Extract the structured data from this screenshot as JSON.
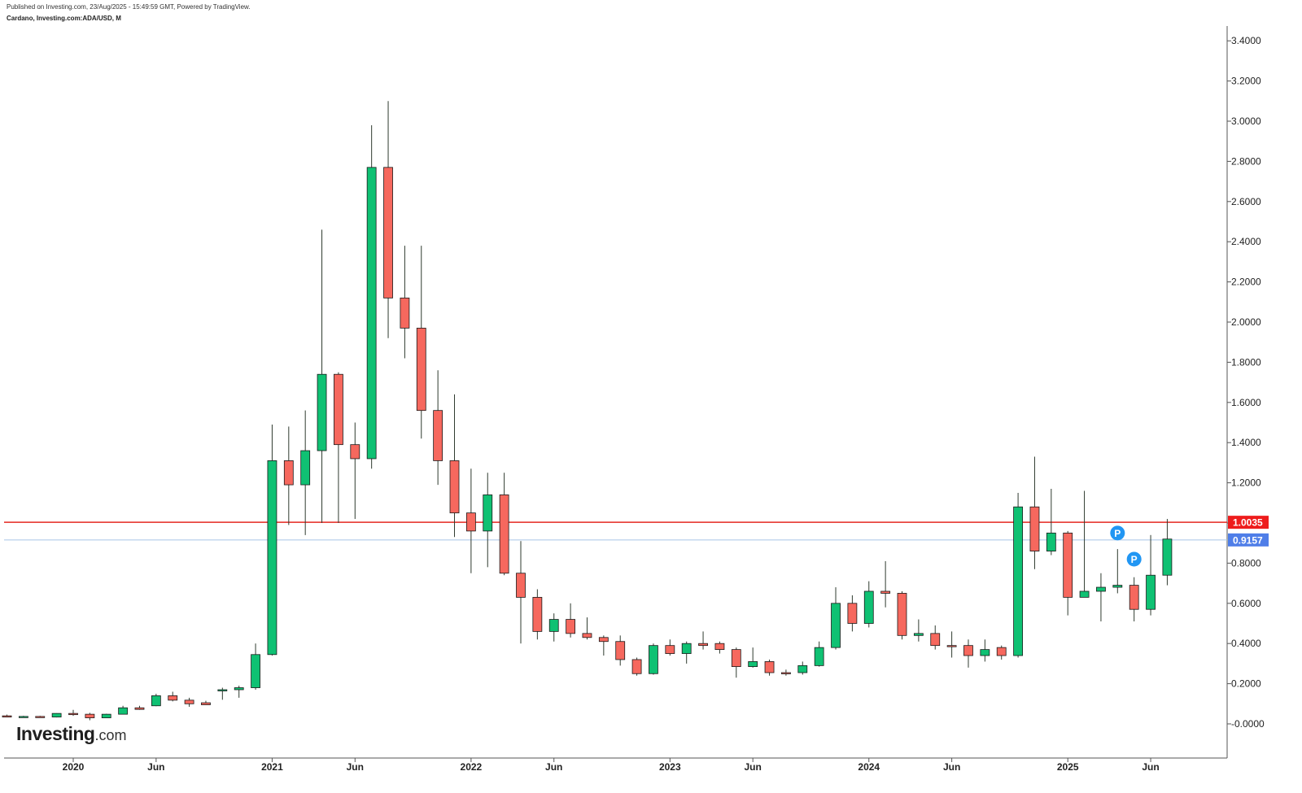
{
  "header": {
    "publish_line": "Published on Investing.com, 23/Aug/2025 - 15:49:59 GMT, Powered by TradingView.",
    "symbol_line": "Cardano, Investing.com:ADA/USD, M"
  },
  "logo": {
    "main": "Investing",
    "suffix": ".com"
  },
  "colors": {
    "up": "#0fc173",
    "down": "#f6685e",
    "line_red": "#e52720",
    "line_blue": "#a9c4e8",
    "badge_blue": "#4f7ee8",
    "badge_red": "#ee1c1c",
    "marker": "#2196f3",
    "wick": "#2f3b2f"
  },
  "chart_data": {
    "type": "candlestick",
    "title": "Cardano, Investing.com:ADA/USD, M",
    "interval": "monthly",
    "y_axis_position": "right",
    "ylim": [
      -0.16,
      3.46
    ],
    "y_ticks": [
      "-0.0000",
      "0.2000",
      "0.4000",
      "0.6000",
      "0.8000",
      "1.0000",
      "1.2000",
      "1.4000",
      "1.6000",
      "1.8000",
      "2.0000",
      "2.2000",
      "2.4000",
      "2.6000",
      "2.8000",
      "3.0000",
      "3.2000",
      "3.4000"
    ],
    "y_tick_values": [
      0,
      0.2,
      0.4,
      0.6,
      0.8,
      1.0,
      1.2,
      1.4,
      1.6,
      1.8,
      2.0,
      2.2,
      2.4,
      2.6,
      2.8,
      3.0,
      3.2,
      3.4
    ],
    "x_ticks": [
      {
        "label": "2020",
        "index": 0
      },
      {
        "label": "Jun",
        "index": 5
      },
      {
        "label": "2021",
        "index": 12
      },
      {
        "label": "Jun",
        "index": 17
      },
      {
        "label": "2022",
        "index": 24
      },
      {
        "label": "Jun",
        "index": 29
      },
      {
        "label": "2023",
        "index": 36
      },
      {
        "label": "Jun",
        "index": 41
      },
      {
        "label": "2024",
        "index": 48
      },
      {
        "label": "Jun",
        "index": 53
      },
      {
        "label": "2025",
        "index": 60
      },
      {
        "label": "Jun",
        "index": 65
      }
    ],
    "candles": [
      {
        "date": "2019-10",
        "o": 0.04,
        "h": 0.046,
        "l": 0.034,
        "c": 0.037
      },
      {
        "date": "2019-11",
        "o": 0.037,
        "h": 0.04,
        "l": 0.035,
        "c": 0.037
      },
      {
        "date": "2019-12",
        "o": 0.037,
        "h": 0.04,
        "l": 0.033,
        "c": 0.034
      },
      {
        "date": "2020-01",
        "o": 0.034,
        "h": 0.053,
        "l": 0.032,
        "c": 0.052
      },
      {
        "date": "2020-02",
        "o": 0.052,
        "h": 0.07,
        "l": 0.04,
        "c": 0.048
      },
      {
        "date": "2020-03",
        "o": 0.048,
        "h": 0.055,
        "l": 0.018,
        "c": 0.03
      },
      {
        "date": "2020-04",
        "o": 0.03,
        "h": 0.05,
        "l": 0.03,
        "c": 0.048
      },
      {
        "date": "2020-05",
        "o": 0.048,
        "h": 0.09,
        "l": 0.048,
        "c": 0.08
      },
      {
        "date": "2020-06",
        "o": 0.08,
        "h": 0.09,
        "l": 0.07,
        "c": 0.072
      },
      {
        "date": "2020-07",
        "o": 0.09,
        "h": 0.15,
        "l": 0.088,
        "c": 0.14
      },
      {
        "date": "2020-08",
        "o": 0.14,
        "h": 0.16,
        "l": 0.112,
        "c": 0.118
      },
      {
        "date": "2020-09",
        "o": 0.118,
        "h": 0.13,
        "l": 0.085,
        "c": 0.1
      },
      {
        "date": "2020-10",
        "o": 0.105,
        "h": 0.115,
        "l": 0.095,
        "c": 0.095
      },
      {
        "date": "2020-11",
        "o": 0.165,
        "h": 0.18,
        "l": 0.12,
        "c": 0.17
      },
      {
        "date": "2020-12",
        "o": 0.17,
        "h": 0.19,
        "l": 0.13,
        "c": 0.18
      },
      {
        "date": "2021-01",
        "o": 0.18,
        "h": 0.4,
        "l": 0.17,
        "c": 0.345
      },
      {
        "date": "2021-02",
        "o": 0.345,
        "h": 1.49,
        "l": 0.34,
        "c": 1.31
      },
      {
        "date": "2021-03",
        "o": 1.31,
        "h": 1.48,
        "l": 0.99,
        "c": 1.19
      },
      {
        "date": "2021-04",
        "o": 1.19,
        "h": 1.56,
        "l": 0.94,
        "c": 1.36
      },
      {
        "date": "2021-05",
        "o": 1.36,
        "h": 2.46,
        "l": 1.0,
        "c": 1.74
      },
      {
        "date": "2021-06",
        "o": 1.74,
        "h": 1.75,
        "l": 1.0,
        "c": 1.39
      },
      {
        "date": "2021-07",
        "o": 1.39,
        "h": 1.5,
        "l": 1.02,
        "c": 1.32
      },
      {
        "date": "2021-08",
        "o": 1.32,
        "h": 2.98,
        "l": 1.27,
        "c": 2.77
      },
      {
        "date": "2021-09",
        "o": 2.77,
        "h": 3.1,
        "l": 1.92,
        "c": 2.12
      },
      {
        "date": "2021-10",
        "o": 2.12,
        "h": 2.38,
        "l": 1.82,
        "c": 1.97
      },
      {
        "date": "2021-11",
        "o": 1.97,
        "h": 2.38,
        "l": 1.42,
        "c": 1.56
      },
      {
        "date": "2021-12",
        "o": 1.56,
        "h": 1.76,
        "l": 1.19,
        "c": 1.31
      },
      {
        "date": "2022-01",
        "o": 1.31,
        "h": 1.64,
        "l": 0.93,
        "c": 1.05
      },
      {
        "date": "2022-02",
        "o": 1.05,
        "h": 1.27,
        "l": 0.75,
        "c": 0.96
      },
      {
        "date": "2022-03",
        "o": 0.96,
        "h": 1.25,
        "l": 0.78,
        "c": 1.14
      },
      {
        "date": "2022-04",
        "o": 1.14,
        "h": 1.25,
        "l": 0.74,
        "c": 0.75
      },
      {
        "date": "2022-05",
        "o": 0.75,
        "h": 0.91,
        "l": 0.4,
        "c": 0.63
      },
      {
        "date": "2022-06",
        "o": 0.63,
        "h": 0.67,
        "l": 0.42,
        "c": 0.46
      },
      {
        "date": "2022-07",
        "o": 0.46,
        "h": 0.55,
        "l": 0.41,
        "c": 0.52
      },
      {
        "date": "2022-08",
        "o": 0.52,
        "h": 0.6,
        "l": 0.43,
        "c": 0.45
      },
      {
        "date": "2022-09",
        "o": 0.45,
        "h": 0.53,
        "l": 0.42,
        "c": 0.43
      },
      {
        "date": "2022-10",
        "o": 0.43,
        "h": 0.44,
        "l": 0.34,
        "c": 0.41
      },
      {
        "date": "2022-11",
        "o": 0.41,
        "h": 0.44,
        "l": 0.29,
        "c": 0.32
      },
      {
        "date": "2022-12",
        "o": 0.32,
        "h": 0.33,
        "l": 0.24,
        "c": 0.25
      },
      {
        "date": "2023-01",
        "o": 0.25,
        "h": 0.4,
        "l": 0.245,
        "c": 0.39
      },
      {
        "date": "2023-02",
        "o": 0.39,
        "h": 0.42,
        "l": 0.34,
        "c": 0.35
      },
      {
        "date": "2023-03",
        "o": 0.35,
        "h": 0.41,
        "l": 0.3,
        "c": 0.4
      },
      {
        "date": "2023-04",
        "o": 0.4,
        "h": 0.46,
        "l": 0.37,
        "c": 0.39
      },
      {
        "date": "2023-05",
        "o": 0.4,
        "h": 0.41,
        "l": 0.35,
        "c": 0.37
      },
      {
        "date": "2023-06",
        "o": 0.37,
        "h": 0.38,
        "l": 0.23,
        "c": 0.285
      },
      {
        "date": "2023-07",
        "o": 0.285,
        "h": 0.38,
        "l": 0.28,
        "c": 0.31
      },
      {
        "date": "2023-08",
        "o": 0.31,
        "h": 0.32,
        "l": 0.24,
        "c": 0.255
      },
      {
        "date": "2023-09",
        "o": 0.255,
        "h": 0.27,
        "l": 0.24,
        "c": 0.25
      },
      {
        "date": "2023-10",
        "o": 0.255,
        "h": 0.31,
        "l": 0.245,
        "c": 0.29
      },
      {
        "date": "2023-11",
        "o": 0.29,
        "h": 0.41,
        "l": 0.285,
        "c": 0.38
      },
      {
        "date": "2023-12",
        "o": 0.38,
        "h": 0.68,
        "l": 0.37,
        "c": 0.6
      },
      {
        "date": "2024-01",
        "o": 0.6,
        "h": 0.64,
        "l": 0.46,
        "c": 0.5
      },
      {
        "date": "2024-02",
        "o": 0.5,
        "h": 0.71,
        "l": 0.48,
        "c": 0.66
      },
      {
        "date": "2024-03",
        "o": 0.66,
        "h": 0.81,
        "l": 0.58,
        "c": 0.65
      },
      {
        "date": "2024-04",
        "o": 0.65,
        "h": 0.66,
        "l": 0.42,
        "c": 0.44
      },
      {
        "date": "2024-05",
        "o": 0.44,
        "h": 0.52,
        "l": 0.41,
        "c": 0.45
      },
      {
        "date": "2024-06",
        "o": 0.45,
        "h": 0.49,
        "l": 0.37,
        "c": 0.39
      },
      {
        "date": "2024-07",
        "o": 0.39,
        "h": 0.46,
        "l": 0.33,
        "c": 0.385
      },
      {
        "date": "2024-08",
        "o": 0.39,
        "h": 0.42,
        "l": 0.28,
        "c": 0.34
      },
      {
        "date": "2024-09",
        "o": 0.34,
        "h": 0.42,
        "l": 0.31,
        "c": 0.37
      },
      {
        "date": "2024-10",
        "o": 0.38,
        "h": 0.39,
        "l": 0.32,
        "c": 0.34
      },
      {
        "date": "2024-11",
        "o": 0.34,
        "h": 1.15,
        "l": 0.33,
        "c": 1.08
      },
      {
        "date": "2024-12",
        "o": 1.08,
        "h": 1.33,
        "l": 0.77,
        "c": 0.86
      },
      {
        "date": "2025-01",
        "o": 0.86,
        "h": 1.17,
        "l": 0.84,
        "c": 0.95
      },
      {
        "date": "2025-02",
        "o": 0.95,
        "h": 0.96,
        "l": 0.54,
        "c": 0.63
      },
      {
        "date": "2025-03",
        "o": 0.63,
        "h": 1.16,
        "l": 0.63,
        "c": 0.66
      },
      {
        "date": "2025-04",
        "o": 0.66,
        "h": 0.75,
        "l": 0.51,
        "c": 0.68
      },
      {
        "date": "2025-05",
        "o": 0.68,
        "h": 0.87,
        "l": 0.65,
        "c": 0.69
      },
      {
        "date": "2025-06",
        "o": 0.69,
        "h": 0.73,
        "l": 0.51,
        "c": 0.57
      },
      {
        "date": "2025-07",
        "o": 0.57,
        "h": 0.94,
        "l": 0.54,
        "c": 0.74
      },
      {
        "date": "2025-08",
        "o": 0.74,
        "h": 1.02,
        "l": 0.69,
        "c": 0.92
      }
    ],
    "horizontal_lines": [
      {
        "value": 1.0035,
        "label": "1.0035",
        "color": "#e52720",
        "style": "solid"
      },
      {
        "value": 0.9157,
        "label": "0.9157",
        "color": "#a9c4e8",
        "style": "solid"
      }
    ],
    "markers": [
      {
        "index": 67,
        "value": 0.95,
        "label": "P"
      },
      {
        "index": 68,
        "value": 0.82,
        "label": "P"
      }
    ],
    "grid": false,
    "legend": "none"
  }
}
